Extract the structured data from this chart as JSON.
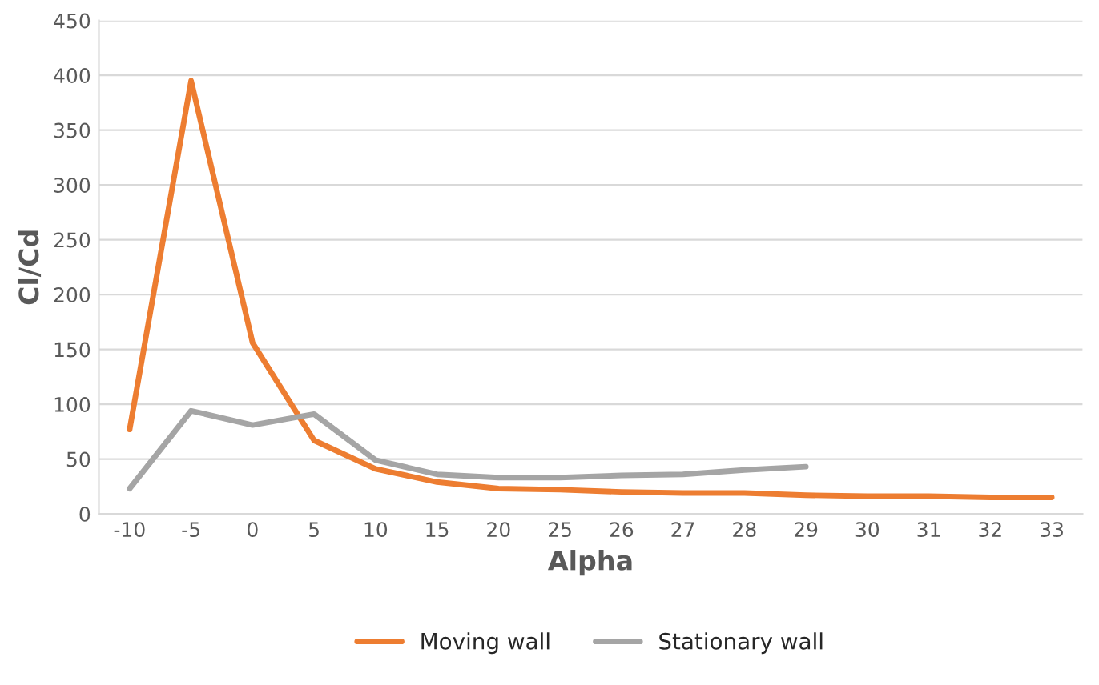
{
  "chart_data": {
    "type": "line",
    "xlabel": "Alpha",
    "ylabel": "Cl/Cd",
    "categories": [
      "-10",
      "-5",
      "0",
      "5",
      "10",
      "15",
      "20",
      "25",
      "26",
      "27",
      "28",
      "29",
      "30",
      "31",
      "32",
      "33"
    ],
    "series": [
      {
        "name": "Moving wall",
        "color": "#ed7d31",
        "values": [
          77,
          395,
          156,
          67,
          41,
          29,
          23,
          22,
          20,
          19,
          19,
          17,
          16,
          16,
          15,
          15
        ]
      },
      {
        "name": "Stationary wall",
        "color": "#a5a5a5",
        "values": [
          23,
          94,
          81,
          91,
          49,
          36,
          33,
          33,
          35,
          36,
          40,
          43,
          null,
          null,
          null,
          null
        ]
      }
    ],
    "ylim": [
      0,
      450
    ],
    "yticks": [
      0,
      50,
      100,
      150,
      200,
      250,
      300,
      350,
      400,
      450
    ],
    "grid": "y",
    "legend": "bottom",
    "marker": "none",
    "line_style": "solid"
  }
}
